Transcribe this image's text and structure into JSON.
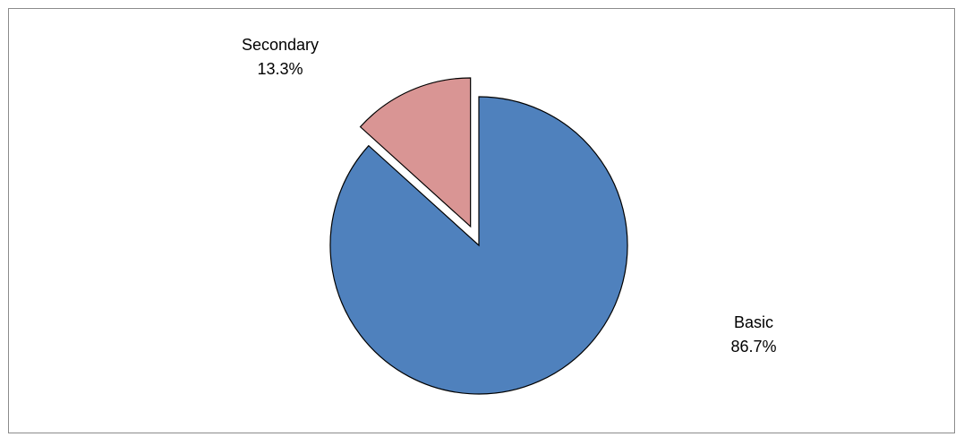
{
  "chart_data": {
    "type": "pie",
    "title": "",
    "slices": [
      {
        "name": "Basic",
        "value": 86.7,
        "label": "86.7%",
        "color": "#4f81bd",
        "exploded": false
      },
      {
        "name": "Secondary",
        "value": 13.3,
        "label": "13.3%",
        "color": "#d99594",
        "exploded": true
      }
    ],
    "legend": "none"
  }
}
